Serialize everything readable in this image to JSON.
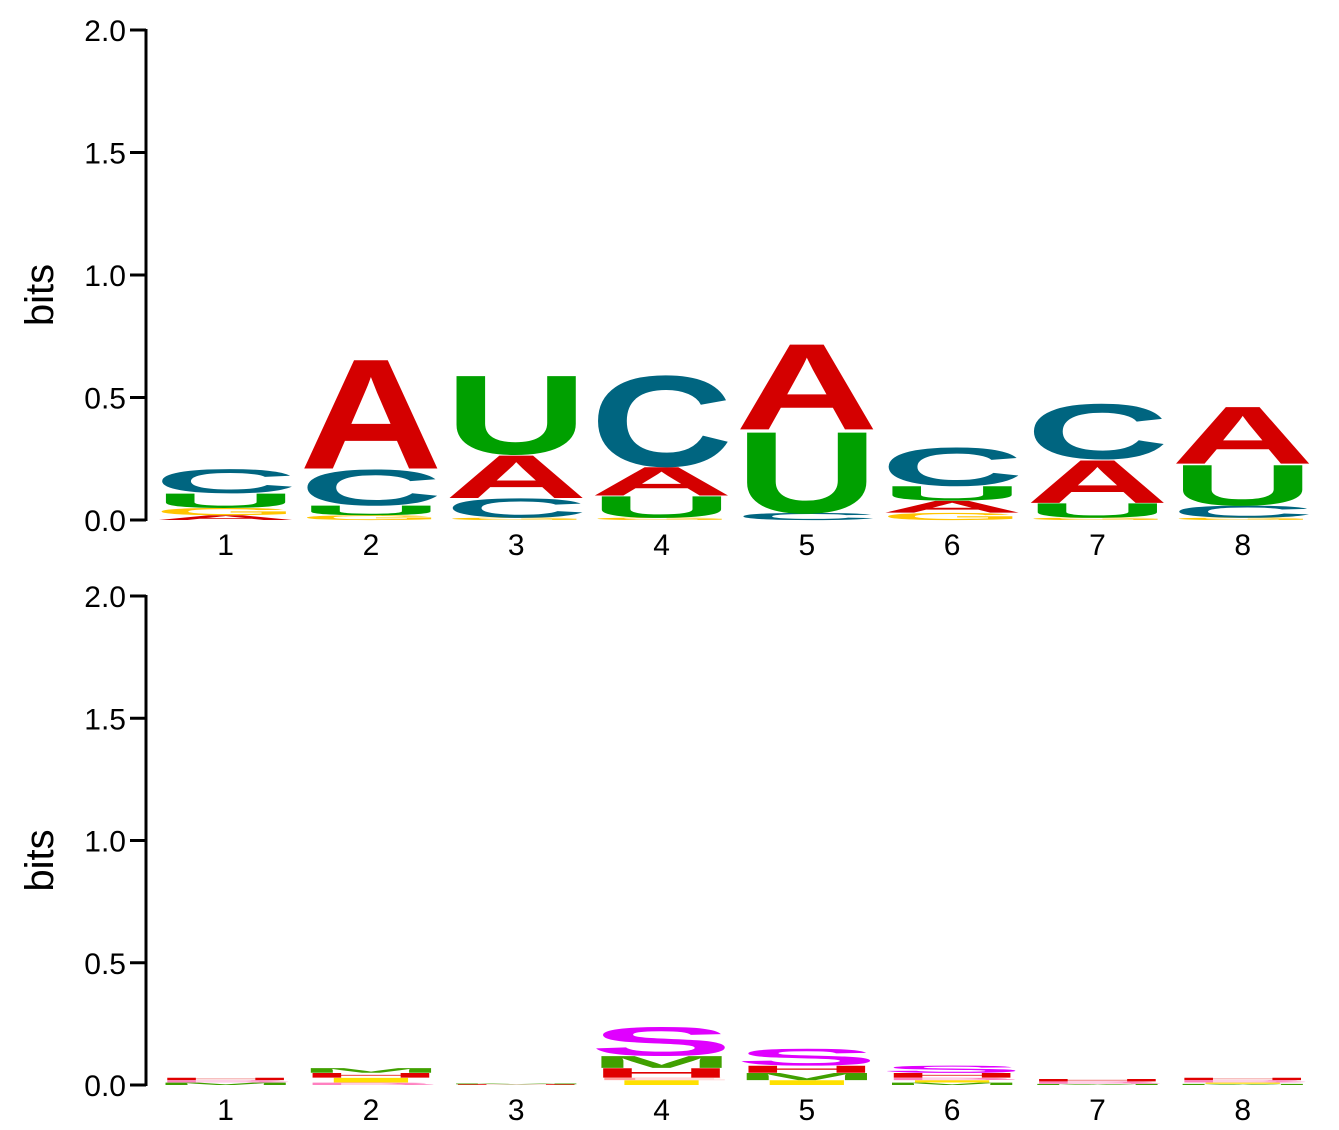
{
  "colors": {
    "A": "#d40000",
    "C": "#006580",
    "G": "#ffc400",
    "U": "#00a000",
    "S": "#e000ff",
    "M": "#40a000",
    "I": "#ffe000",
    "H": "#e00000",
    "B": "#ff80c0",
    "E": "#ffa0a0"
  },
  "chart_data": [
    {
      "type": "sequence-logo",
      "ylabel": "bits",
      "ylim": [
        0,
        2.0
      ],
      "yticks": [
        "0.0",
        "0.5",
        "1.0",
        "1.5",
        "2.0"
      ],
      "positions": [
        "1",
        "2",
        "3",
        "4",
        "5",
        "6",
        "7",
        "8"
      ],
      "stacks": [
        [
          {
            "letter": "A",
            "bits": 0.02
          },
          {
            "letter": "G",
            "bits": 0.03
          },
          {
            "letter": "U",
            "bits": 0.06
          },
          {
            "letter": "C",
            "bits": 0.1
          }
        ],
        [
          {
            "letter": "G",
            "bits": 0.02
          },
          {
            "letter": "U",
            "bits": 0.04
          },
          {
            "letter": "C",
            "bits": 0.15
          },
          {
            "letter": "A",
            "bits": 0.46
          }
        ],
        [
          {
            "letter": "G",
            "bits": 0.01
          },
          {
            "letter": "C",
            "bits": 0.08
          },
          {
            "letter": "A",
            "bits": 0.18
          },
          {
            "letter": "U",
            "bits": 0.33
          }
        ],
        [
          {
            "letter": "G",
            "bits": 0.01
          },
          {
            "letter": "U",
            "bits": 0.09
          },
          {
            "letter": "A",
            "bits": 0.12
          },
          {
            "letter": "C",
            "bits": 0.38
          }
        ],
        [
          {
            "letter": "C",
            "bits": 0.03
          },
          {
            "letter": "U",
            "bits": 0.34
          },
          {
            "letter": "A",
            "bits": 0.36
          }
        ],
        [
          {
            "letter": "G",
            "bits": 0.03
          },
          {
            "letter": "A",
            "bits": 0.05
          },
          {
            "letter": "U",
            "bits": 0.06
          },
          {
            "letter": "C",
            "bits": 0.16
          }
        ],
        [
          {
            "letter": "G",
            "bits": 0.01
          },
          {
            "letter": "U",
            "bits": 0.06
          },
          {
            "letter": "A",
            "bits": 0.18
          },
          {
            "letter": "C",
            "bits": 0.23
          }
        ],
        [
          {
            "letter": "G",
            "bits": 0.01
          },
          {
            "letter": "C",
            "bits": 0.05
          },
          {
            "letter": "U",
            "bits": 0.17
          },
          {
            "letter": "A",
            "bits": 0.24
          }
        ]
      ]
    },
    {
      "type": "sequence-logo",
      "ylabel": "bits",
      "ylim": [
        0,
        2.0
      ],
      "yticks": [
        "0.0",
        "0.5",
        "1.0",
        "1.5",
        "2.0"
      ],
      "positions": [
        "1",
        "2",
        "3",
        "4",
        "5",
        "6",
        "7",
        "8"
      ],
      "stacks": [
        [
          {
            "letter": "M",
            "bits": 0.01
          },
          {
            "letter": "B",
            "bits": 0.01
          },
          {
            "letter": "H",
            "bits": 0.01
          }
        ],
        [
          {
            "letter": "B",
            "bits": 0.01
          },
          {
            "letter": "I",
            "bits": 0.02
          },
          {
            "letter": "H",
            "bits": 0.02
          },
          {
            "letter": "M",
            "bits": 0.02
          }
        ],
        [
          {
            "letter": "H",
            "bits": 0.003
          },
          {
            "letter": "M",
            "bits": 0.003
          }
        ],
        [
          {
            "letter": "I",
            "bits": 0.02
          },
          {
            "letter": "E",
            "bits": 0.01
          },
          {
            "letter": "H",
            "bits": 0.04
          },
          {
            "letter": "M",
            "bits": 0.05
          },
          {
            "letter": "S",
            "bits": 0.12
          }
        ],
        [
          {
            "letter": "I",
            "bits": 0.02
          },
          {
            "letter": "M",
            "bits": 0.03
          },
          {
            "letter": "H",
            "bits": 0.03
          },
          {
            "letter": "S",
            "bits": 0.07
          }
        ],
        [
          {
            "letter": "M",
            "bits": 0.01
          },
          {
            "letter": "I",
            "bits": 0.01
          },
          {
            "letter": "B",
            "bits": 0.01
          },
          {
            "letter": "H",
            "bits": 0.02
          },
          {
            "letter": "S",
            "bits": 0.03
          }
        ],
        [
          {
            "letter": "M",
            "bits": 0.005
          },
          {
            "letter": "B",
            "bits": 0.01
          },
          {
            "letter": "H",
            "bits": 0.01
          }
        ],
        [
          {
            "letter": "M",
            "bits": 0.005
          },
          {
            "letter": "I",
            "bits": 0.005
          },
          {
            "letter": "B",
            "bits": 0.01
          },
          {
            "letter": "H",
            "bits": 0.01
          }
        ]
      ]
    }
  ]
}
